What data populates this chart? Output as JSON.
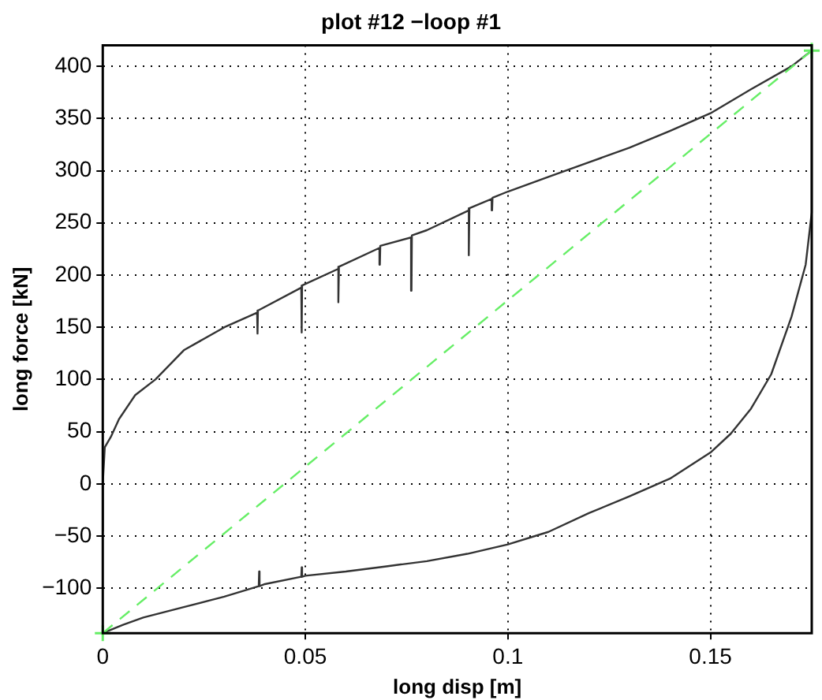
{
  "chart_data": {
    "type": "line",
    "title": "plot #12 −loop #1",
    "xlabel": "long disp [m]",
    "ylabel": "long force [kN]",
    "xlim": [
      0,
      0.175
    ],
    "ylim": [
      -143,
      420
    ],
    "xticks": [
      0,
      0.05,
      0.1,
      0.15
    ],
    "yticks": [
      -100,
      -50,
      0,
      50,
      100,
      150,
      200,
      250,
      300,
      350,
      400
    ],
    "grid": true,
    "legend": false,
    "marker": "none",
    "line_style": "solid",
    "series": [
      {
        "color": "#333333",
        "x": [
          0,
          0.005,
          0.01,
          0.02,
          0.03,
          0.0385,
          0.0386,
          0.0387,
          0.04,
          0.049,
          0.0491,
          0.0492,
          0.05,
          0.06,
          0.07,
          0.08,
          0.09,
          0.1,
          0.11,
          0.12,
          0.13,
          0.14,
          0.15,
          0.155,
          0.16,
          0.165,
          0.17,
          0.1735,
          0.175,
          0.175,
          0.17,
          0.16,
          0.15,
          0.14,
          0.13,
          0.12,
          0.11,
          0.1,
          0.0962,
          0.0961,
          0.096,
          0.0905,
          0.0904,
          0.0903,
          0.08,
          0.0763,
          0.0762,
          0.0761,
          0.0685,
          0.0684,
          0.0683,
          0.0583,
          0.0582,
          0.0581,
          0.0492,
          0.0491,
          0.049,
          0.0383,
          0.0382,
          0.0381,
          0.03,
          0.02,
          0.013,
          0.008,
          0.004,
          0.002,
          0.0005,
          0,
          0
        ],
        "values": [
          -143,
          -135,
          -128,
          -118,
          -108,
          -98,
          -84,
          -98,
          -96,
          -89,
          -80,
          -89,
          -88,
          -84,
          -79,
          -74,
          -67,
          -58,
          -46,
          -28,
          -12,
          5,
          30,
          48,
          72,
          105,
          160,
          210,
          260,
          415,
          400,
          378,
          355,
          338,
          322,
          308,
          294,
          280,
          274,
          262,
          273,
          264,
          219,
          262,
          243,
          238,
          185,
          236,
          228,
          210,
          226,
          208,
          174,
          206,
          190,
          145,
          188,
          166,
          144,
          164,
          150,
          128,
          100,
          85,
          62,
          45,
          35,
          0,
          -45
        ]
      },
      {
        "color": "#66ee66",
        "line_style": "dashed",
        "marker": "cross",
        "x": [
          0,
          0.175
        ],
        "values": [
          -143,
          415
        ]
      }
    ]
  }
}
